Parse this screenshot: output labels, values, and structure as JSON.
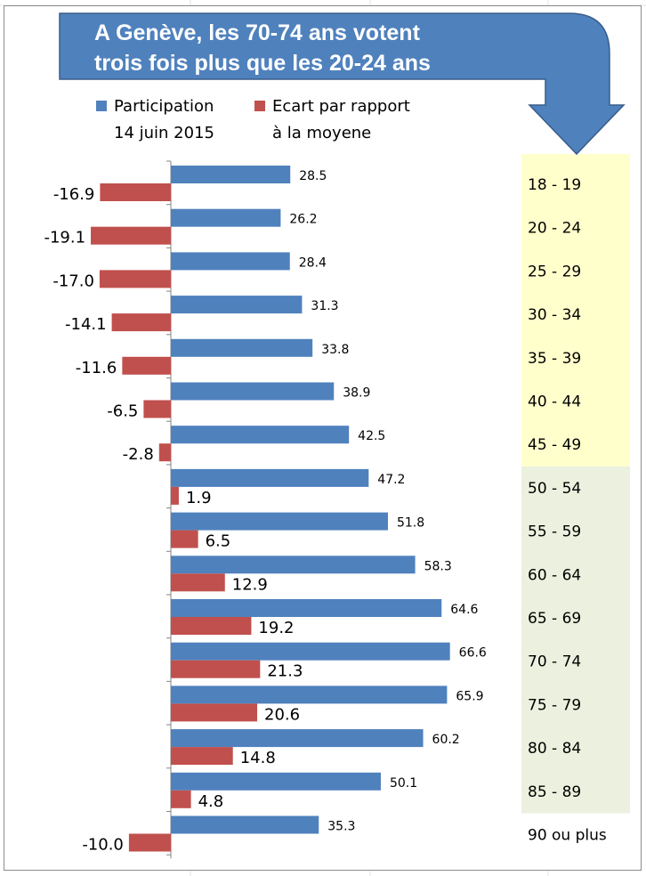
{
  "chart_data": {
    "type": "bar",
    "orientation": "horizontal",
    "title": "A Genève, les 70-74 ans votent trois fois plus que les 20-24 ans",
    "title_lines": [
      "A Genève, les 70-74 ans votent",
      "trois fois plus que les 20-24 ans"
    ],
    "categories": [
      "18 - 19",
      "20 - 24",
      "25 - 29",
      "30 - 34",
      "35 - 39",
      "40 - 44",
      "45 - 49",
      "50 - 54",
      "55 - 59",
      "60 - 64",
      "65 - 69",
      "70 - 74",
      "75 - 79",
      "80 - 84",
      "85 - 89",
      "90 ou plus"
    ],
    "series": [
      {
        "name": "Participation 14 juin 2015",
        "legend_lines": [
          "Participation",
          "14 juin 2015"
        ],
        "color": "#4F81BD",
        "values": [
          28.5,
          26.2,
          28.4,
          31.3,
          33.8,
          38.9,
          42.5,
          47.2,
          51.8,
          58.3,
          64.6,
          66.6,
          65.9,
          60.2,
          50.1,
          35.3
        ],
        "labels": [
          "28.5",
          "26.2",
          "28.4",
          "31.3",
          "33.8",
          "38.9",
          "42.5",
          "47.2",
          "51.8",
          "58.3",
          "64.6",
          "66.6",
          "65.9",
          "60.2",
          "50.1",
          "35.3"
        ]
      },
      {
        "name": "Ecart par rapport à la moyene",
        "legend_lines": [
          "Ecart par rapport",
          "à la moyene"
        ],
        "color": "#C0504D",
        "values": [
          -16.9,
          -19.1,
          -17.0,
          -14.1,
          -11.6,
          -6.5,
          -2.8,
          1.9,
          6.5,
          12.9,
          19.2,
          21.3,
          20.6,
          14.8,
          4.8,
          -10.0
        ],
        "labels": [
          "-16.9",
          "-19.1",
          "-17.0",
          "-14.1",
          "-11.6",
          "-6.5",
          "-2.8",
          "1.9",
          "6.5",
          "12.9",
          "19.2",
          "21.3",
          "20.6",
          "14.8",
          "4.8",
          "-10.0"
        ]
      }
    ],
    "category_highlight": {
      "yellow_until_index": 6,
      "green_from_index": 7,
      "green_until_index": 14,
      "yellow": "#FFFFCC",
      "green": "#EBF1DE"
    },
    "arrow_color": "#4F81BD",
    "legend_position": "top",
    "grid": false
  }
}
